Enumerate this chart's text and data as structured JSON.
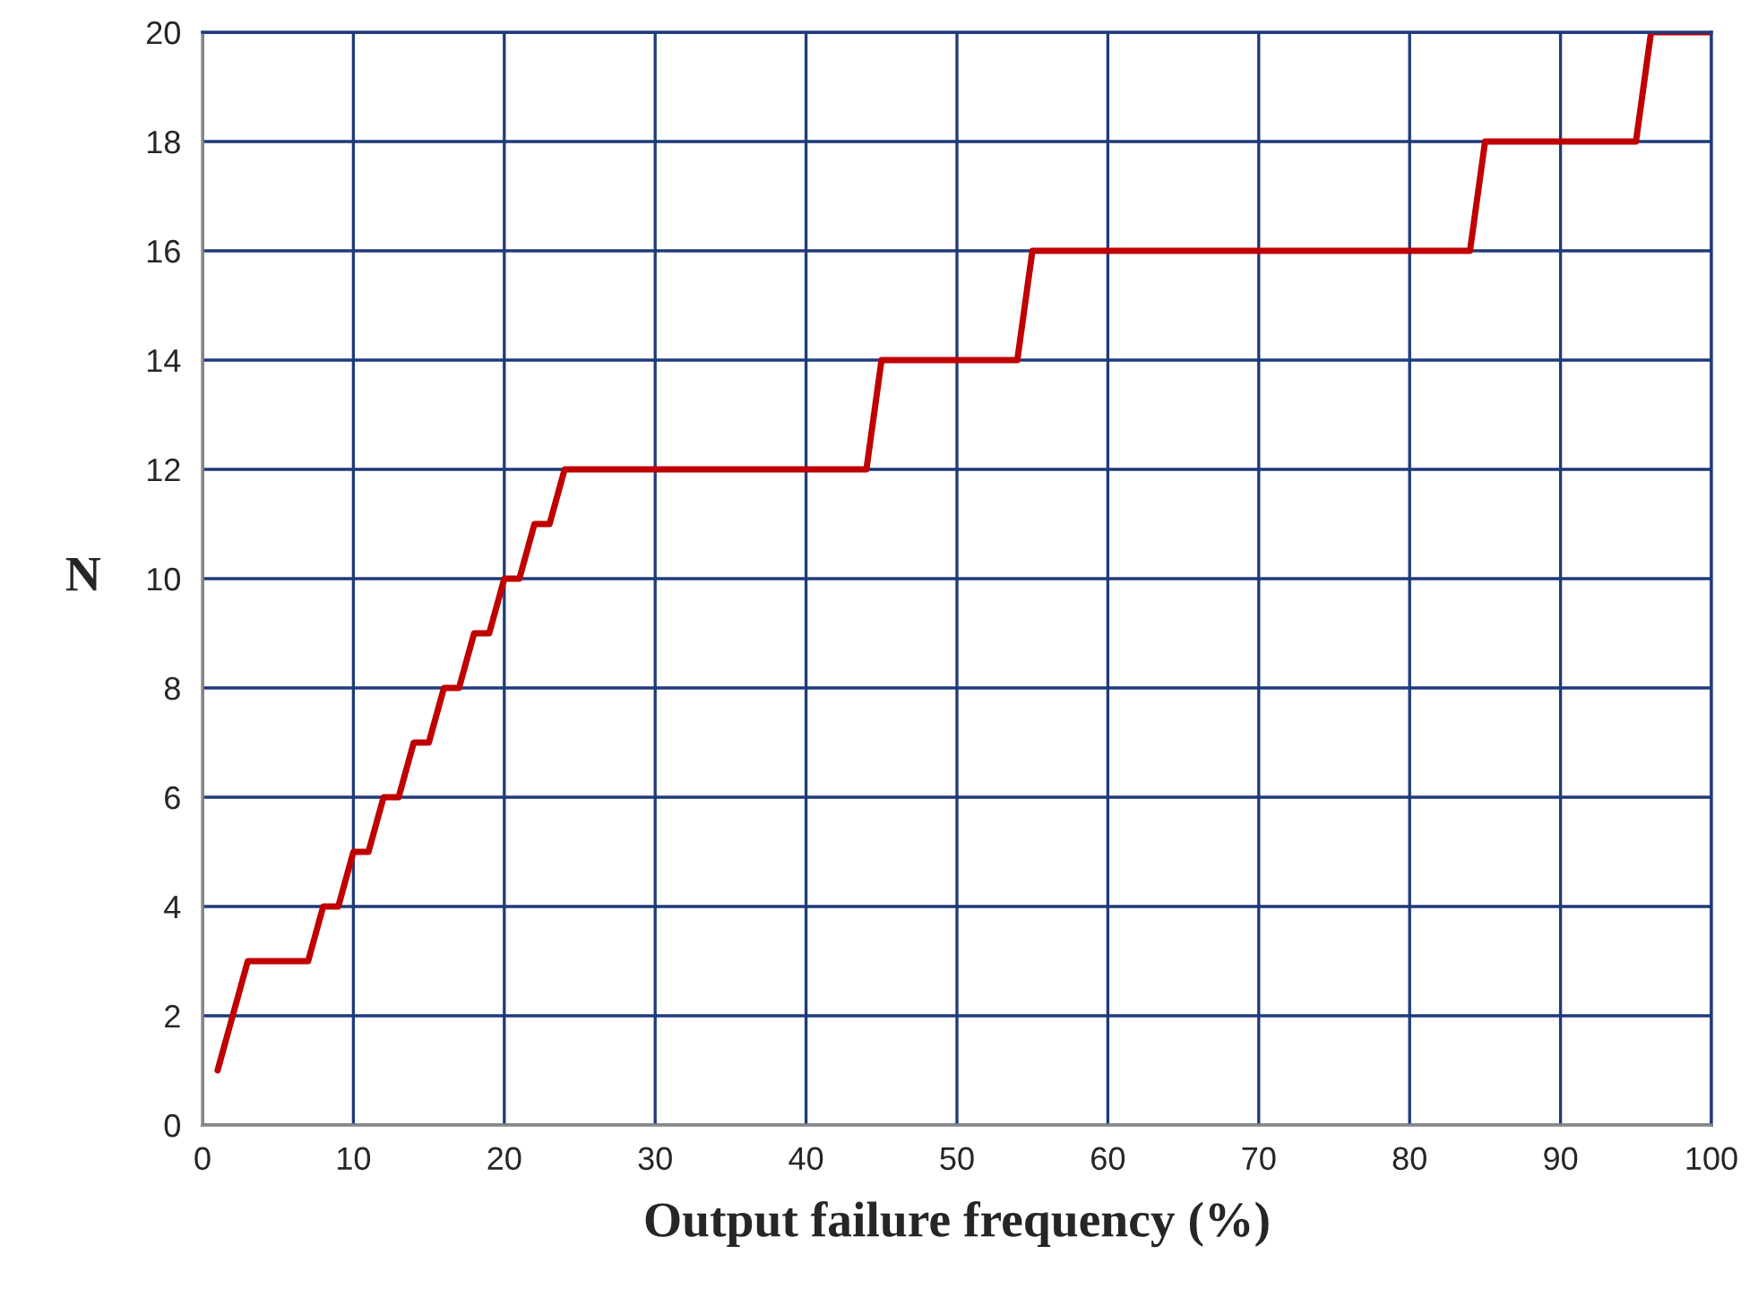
{
  "chart_data": {
    "type": "line",
    "xlabel": "Output failure frequency (%)",
    "ylabel": "N",
    "series": [
      {
        "color": "#c00000",
        "x": [
          1,
          3,
          7,
          8,
          9,
          10,
          11,
          12,
          13,
          14,
          15,
          16,
          17,
          18,
          19,
          20,
          21,
          22,
          23,
          24,
          44,
          45,
          54,
          55,
          84,
          85,
          95,
          96,
          100
        ],
        "values": [
          1,
          3,
          3,
          4,
          4,
          5,
          5,
          6,
          6,
          7,
          7,
          8,
          8,
          9,
          9,
          10,
          10,
          11,
          11,
          12,
          12,
          14,
          14,
          16,
          16,
          18,
          18,
          20,
          20
        ]
      }
    ],
    "xlim": [
      0,
      100
    ],
    "xticks": [
      0,
      10,
      20,
      30,
      40,
      50,
      60,
      70,
      80,
      90,
      100
    ],
    "ylim": [
      0,
      20
    ],
    "yticks": [
      0,
      2,
      4,
      6,
      8,
      10,
      12,
      14,
      16,
      18,
      20
    ],
    "grid": true,
    "marker": "none",
    "line_style": "solid",
    "legend": false
  }
}
